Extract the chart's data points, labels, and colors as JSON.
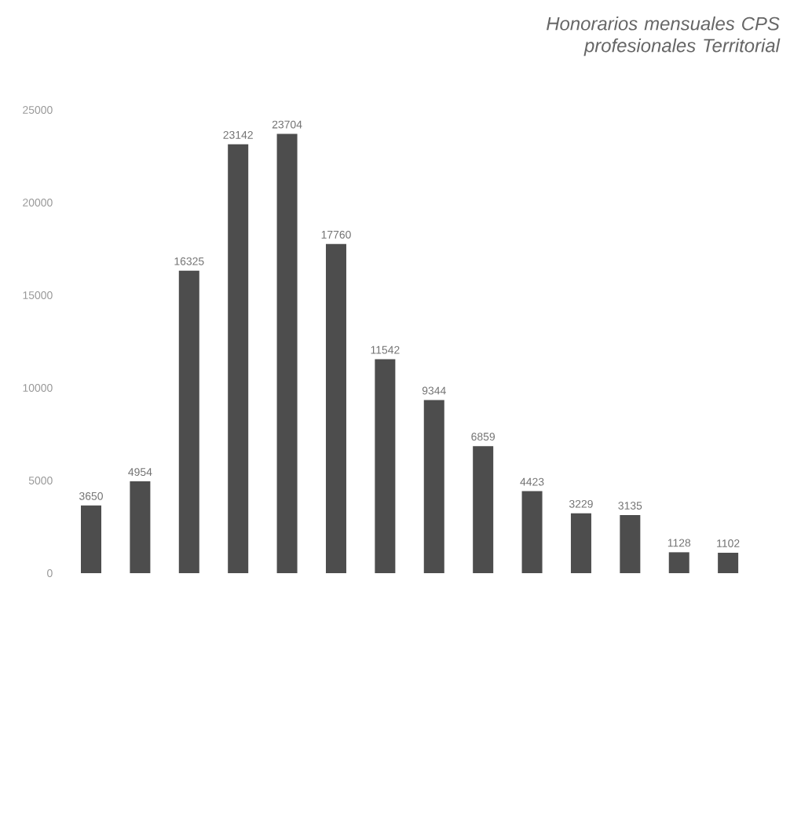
{
  "chart_data": {
    "type": "bar",
    "title": "Honorarios mensuales CPS profesionales Territorial",
    "categories": [
      null,
      null,
      null,
      null,
      null,
      null,
      null,
      null,
      null,
      null,
      null,
      null,
      null,
      null
    ],
    "values": [
      3650,
      4954,
      16325,
      23142,
      23704,
      17760,
      11542,
      9344,
      6859,
      4423,
      3229,
      3135,
      1128,
      1102
    ],
    "color": "#4d4d4d",
    "ylim": [
      0,
      25000
    ],
    "yticks": [
      0,
      5000,
      10000,
      15000,
      20000,
      25000
    ],
    "data_labels": true
  }
}
